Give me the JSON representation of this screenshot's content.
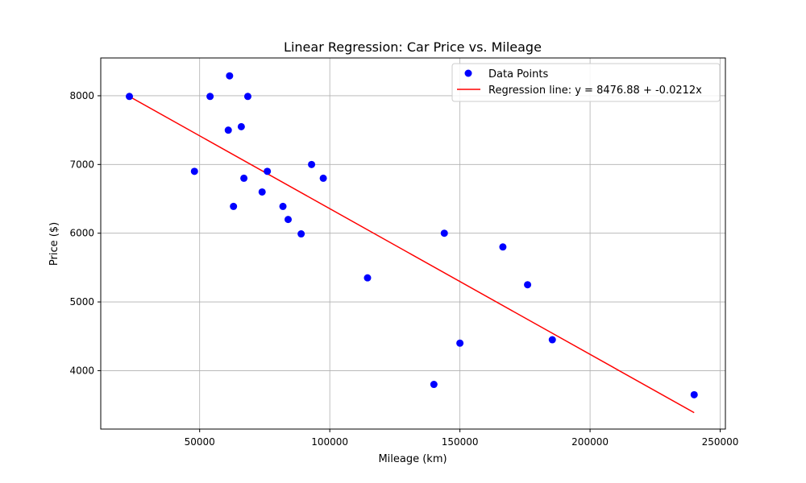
{
  "chart_data": {
    "type": "scatter",
    "title": "Linear Regression: Car Price vs. Mileage",
    "xlabel": "Mileage (km)",
    "ylabel": "Price ($)",
    "xlim": [
      12000,
      252000
    ],
    "ylim": [
      3150,
      8550
    ],
    "x_ticks": [
      50000,
      100000,
      150000,
      200000,
      250000
    ],
    "y_ticks": [
      4000,
      5000,
      6000,
      7000,
      8000
    ],
    "grid": true,
    "legend_position": "top-right",
    "series": [
      {
        "name": "Data Points",
        "kind": "scatter",
        "color": "#0000ff",
        "points": [
          [
            23000,
            7990
          ],
          [
            48000,
            6900
          ],
          [
            54000,
            7990
          ],
          [
            61000,
            7500
          ],
          [
            61500,
            8290
          ],
          [
            63000,
            6390
          ],
          [
            66000,
            7550
          ],
          [
            67000,
            6800
          ],
          [
            68500,
            7990
          ],
          [
            74000,
            6600
          ],
          [
            76000,
            6900
          ],
          [
            82000,
            6390
          ],
          [
            84000,
            6200
          ],
          [
            89000,
            5990
          ],
          [
            93000,
            7000
          ],
          [
            97500,
            6800
          ],
          [
            114500,
            5350
          ],
          [
            140000,
            3800
          ],
          [
            144000,
            6000
          ],
          [
            150000,
            4400
          ],
          [
            166500,
            5800
          ],
          [
            176000,
            5250
          ],
          [
            185500,
            4450
          ],
          [
            240000,
            3650
          ]
        ]
      },
      {
        "name": "Regression line: y = 8476.88 + -0.0212x",
        "kind": "line",
        "color": "#ff0000",
        "intercept": 8476.88,
        "slope": -0.0212,
        "x_range": [
          23000,
          240000
        ]
      }
    ]
  }
}
